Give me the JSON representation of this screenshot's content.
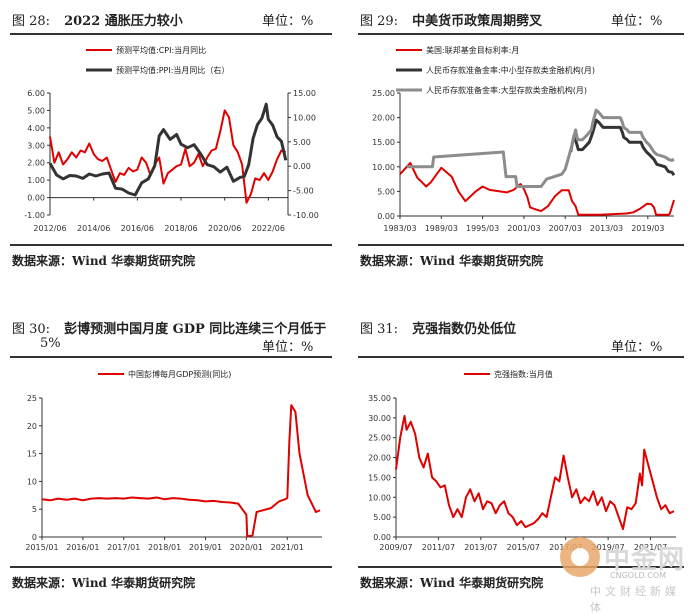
{
  "panels": [
    {
      "num": "图 28:",
      "title": "2022 通胀压力较小",
      "unit": "单位：%",
      "source": "数据来源：Wind 华泰期货研究院"
    },
    {
      "num": "图 29:",
      "title": "中美货币政策周期劈叉",
      "unit": "单位：%",
      "source": "数据来源：Wind 华泰期货研究院"
    },
    {
      "num": "图 30:",
      "title": "彭博预测中国月度 GDP 同比连续三个月低于",
      "title2": "5%",
      "unit": "单位：%",
      "source": "数据来源：Wind 华泰期货研究院"
    },
    {
      "num": "图 31:",
      "title": "克强指数仍处低位",
      "unit": "单位：%",
      "source": "数据来源：Wind 华泰期货研究院"
    }
  ],
  "watermark": {
    "text": "中金网",
    "sub": "CNGOLD.COM",
    "cn": "中文财经新媒体"
  },
  "colors": {
    "red": "#e00000",
    "dark": "#333333",
    "gray": "#8c8c8c",
    "axis": "#333333"
  },
  "chart_data": [
    {
      "type": "line",
      "legend": [
        "预测平均值:CPI:当月同比",
        "预测平均值:PPI:当月同比（右）"
      ],
      "x_ticks": [
        "2012/06",
        "2014/06",
        "2016/06",
        "2018/06",
        "2020/06",
        "2022/06"
      ],
      "x_range": [
        2012.0,
        2022.9
      ],
      "y_left": {
        "range": [
          -1,
          6
        ],
        "ticks": [
          "-1.00",
          "0.00",
          "1.00",
          "2.00",
          "3.00",
          "4.00",
          "5.00",
          "6.00"
        ],
        "vals": [
          -1,
          0,
          1,
          2,
          3,
          4,
          5,
          6
        ]
      },
      "y_right": {
        "range": [
          -10,
          15
        ],
        "ticks": [
          "-10.00",
          "-5.00",
          "0.00",
          "5.00",
          "10.00",
          "15.00"
        ],
        "vals": [
          -10,
          -5,
          0,
          5,
          10,
          15
        ]
      },
      "series": [
        {
          "name": "预测平均值:CPI:当月同比",
          "axis": "left",
          "color": "red",
          "x": [
            2012.0,
            2012.2,
            2012.4,
            2012.6,
            2012.8,
            2013.0,
            2013.2,
            2013.4,
            2013.6,
            2013.8,
            2014.0,
            2014.2,
            2014.4,
            2014.6,
            2014.8,
            2015.0,
            2015.2,
            2015.4,
            2015.6,
            2015.8,
            2016.0,
            2016.2,
            2016.4,
            2016.6,
            2016.8,
            2017.0,
            2017.2,
            2017.4,
            2017.6,
            2017.8,
            2018.0,
            2018.2,
            2018.4,
            2018.6,
            2018.8,
            2019.0,
            2019.2,
            2019.4,
            2019.6,
            2019.8,
            2020.0,
            2020.2,
            2020.4,
            2020.6,
            2020.8,
            2021.0,
            2021.2,
            2021.4,
            2021.6,
            2021.8,
            2022.0,
            2022.2,
            2022.4,
            2022.6,
            2022.8
          ],
          "y": [
            3.5,
            2.0,
            2.6,
            1.9,
            2.2,
            2.6,
            2.3,
            2.7,
            2.6,
            3.1,
            2.5,
            2.2,
            2.1,
            2.3,
            1.6,
            0.9,
            1.4,
            1.3,
            1.7,
            1.5,
            1.6,
            2.3,
            2.0,
            1.3,
            1.9,
            2.3,
            0.8,
            1.4,
            1.6,
            1.8,
            1.9,
            2.8,
            1.8,
            2.0,
            2.5,
            1.8,
            2.3,
            2.7,
            2.8,
            3.8,
            5.0,
            4.6,
            3.0,
            2.6,
            1.9,
            -0.3,
            0.2,
            1.1,
            1.0,
            1.4,
            1.0,
            1.5,
            2.2,
            2.7,
            2.6
          ]
        },
        {
          "name": "预测平均值:PPI:当月同比（右）",
          "axis": "right",
          "color": "dark",
          "x": [
            2012.0,
            2012.3,
            2012.6,
            2012.9,
            2013.2,
            2013.5,
            2013.8,
            2014.1,
            2014.4,
            2014.7,
            2015.0,
            2015.3,
            2015.6,
            2015.9,
            2016.2,
            2016.5,
            2016.8,
            2017.0,
            2017.2,
            2017.5,
            2017.8,
            2018.0,
            2018.3,
            2018.6,
            2018.9,
            2019.2,
            2019.5,
            2019.8,
            2020.1,
            2020.4,
            2020.7,
            2020.9,
            2021.1,
            2021.3,
            2021.5,
            2021.7,
            2021.8,
            2021.9,
            2022.0,
            2022.2,
            2022.4,
            2022.6,
            2022.8
          ],
          "y": [
            0.6,
            -1.8,
            -2.6,
            -1.9,
            -2.0,
            -2.5,
            -1.6,
            -2.0,
            -1.6,
            -1.4,
            -4.5,
            -4.7,
            -5.5,
            -5.9,
            -3.4,
            -2.6,
            0.1,
            6.2,
            7.5,
            5.5,
            6.5,
            4.5,
            3.8,
            4.4,
            2.5,
            0.3,
            -0.1,
            -1.2,
            -0.2,
            -3.1,
            -2.3,
            -2.1,
            0.3,
            5.7,
            8.5,
            9.8,
            11.2,
            12.7,
            9.6,
            8.4,
            6.0,
            5.1,
            1.2
          ]
        }
      ]
    },
    {
      "type": "line",
      "legend": [
        "美国:联邦基金目标利率:月",
        "人民币存款准备金率:中小型存款类金融机构(月)",
        "人民币存款准备金率:大型存款类金融机构(月)"
      ],
      "x_ticks": [
        "1983/03",
        "1989/03",
        "1995/03",
        "2001/03",
        "2007/03",
        "2013/03",
        "2019/03"
      ],
      "x_range": [
        1983.0,
        2022.8
      ],
      "y_left": {
        "range": [
          0,
          25
        ],
        "ticks": [
          "0.00",
          "5.00",
          "10.00",
          "15.00",
          "20.00",
          "25.00"
        ],
        "vals": [
          0,
          5,
          10,
          15,
          20,
          25
        ]
      },
      "series": [
        {
          "name": "美国:联邦基金目标利率:月",
          "color": "red",
          "x": [
            1983.0,
            1984.5,
            1985.5,
            1986.8,
            1987.5,
            1989.0,
            1990.5,
            1991.5,
            1992.5,
            1994.0,
            1995.0,
            1996.0,
            1998.5,
            1999.5,
            2000.5,
            2001.0,
            2001.5,
            2001.9,
            2002.9,
            2003.5,
            2004.5,
            2005.5,
            2006.5,
            2007.5,
            2008.0,
            2008.5,
            2008.9,
            2012.0,
            2015.9,
            2016.9,
            2017.9,
            2018.9,
            2019.5,
            2019.9,
            2020.2,
            2022.0,
            2022.2,
            2022.8
          ],
          "y": [
            8.5,
            10.8,
            7.8,
            6.0,
            6.9,
            9.8,
            8.0,
            5.0,
            3.0,
            5.0,
            6.0,
            5.3,
            4.8,
            5.3,
            6.5,
            5.5,
            3.8,
            1.75,
            1.25,
            1.0,
            2.0,
            4.0,
            5.25,
            5.25,
            3.0,
            2.0,
            0.25,
            0.25,
            0.5,
            0.75,
            1.5,
            2.5,
            2.4,
            1.75,
            0.25,
            0.25,
            0.5,
            3.25
          ]
        },
        {
          "name": "人民币存款准备金率:中小型存款类金融机构(月)",
          "color": "dark",
          "x": [
            2007.8,
            2008.0,
            2008.3,
            2008.9,
            2009.5,
            2010.5,
            2011.0,
            2011.5,
            2011.9,
            2012.2,
            2012.5,
            2015.0,
            2015.3,
            2015.5,
            2016.0,
            2016.3,
            2018.0,
            2018.3,
            2018.8,
            2019.2,
            2019.9,
            2020.3,
            2021.5,
            2022.0,
            2022.5,
            2022.8
          ],
          "y": [
            13.0,
            14.5,
            16.5,
            13.5,
            13.5,
            15.0,
            17.0,
            19.5,
            19.0,
            18.5,
            18.0,
            18.0,
            17.0,
            16.0,
            15.5,
            15.0,
            15.0,
            14.0,
            13.0,
            12.5,
            11.5,
            10.5,
            10.0,
            9.0,
            8.9,
            8.3
          ]
        },
        {
          "name": "人民币存款准备金率:大型存款类金融机构(月)",
          "color": "gray",
          "x": [
            1984.0,
            1985.0,
            1985.2,
            1987.7,
            1987.9,
            1998.0,
            1998.4,
            1999.8,
            2000.0,
            2003.5,
            2004.3,
            2006.5,
            2007.0,
            2007.5,
            2008.0,
            2008.5,
            2008.8,
            2009.5,
            2010.2,
            2010.8,
            2011.0,
            2011.5,
            2011.9,
            2012.2,
            2012.5,
            2015.0,
            2015.3,
            2015.5,
            2016.0,
            2016.3,
            2018.0,
            2018.3,
            2018.8,
            2019.2,
            2019.9,
            2020.3,
            2021.5,
            2022.0,
            2022.5,
            2022.8
          ],
          "y": [
            10.0,
            10.0,
            10.0,
            10.0,
            12.0,
            13.0,
            8.0,
            8.0,
            6.0,
            6.0,
            7.5,
            8.5,
            9.5,
            12.0,
            14.5,
            17.5,
            15.5,
            15.5,
            16.5,
            17.5,
            19.0,
            21.5,
            21.0,
            20.5,
            20.0,
            20.0,
            19.0,
            18.0,
            17.5,
            17.0,
            17.0,
            16.0,
            15.0,
            14.5,
            13.0,
            12.5,
            12.0,
            11.5,
            11.3,
            11.5
          ]
        }
      ]
    },
    {
      "type": "line",
      "legend": [
        "中国彭博每月GDP预测(同比)"
      ],
      "x_ticks": [
        "2015/01",
        "2016/01",
        "2017/01",
        "2018/01",
        "2019/01",
        "2020/01",
        "2021/01"
      ],
      "x_range": [
        2015.0,
        2021.85
      ],
      "y_left": {
        "range": [
          0,
          25
        ],
        "ticks": [
          "0",
          "5",
          "10",
          "15",
          "20",
          "25"
        ],
        "vals": [
          0,
          5,
          10,
          15,
          20,
          25
        ]
      },
      "series": [
        {
          "name": "中国彭博每月GDP预测(同比)",
          "color": "red",
          "x": [
            2015.0,
            2015.2,
            2015.4,
            2015.6,
            2015.8,
            2016.0,
            2016.2,
            2016.4,
            2016.6,
            2016.8,
            2017.0,
            2017.2,
            2017.4,
            2017.6,
            2017.8,
            2018.0,
            2018.2,
            2018.4,
            2018.6,
            2018.8,
            2019.0,
            2019.2,
            2019.4,
            2019.6,
            2019.8,
            2020.0,
            2020.02,
            2020.15,
            2020.25,
            2020.4,
            2020.6,
            2020.8,
            2020.95,
            2021.0,
            2021.05,
            2021.1,
            2021.2,
            2021.3,
            2021.5,
            2021.6,
            2021.7,
            2021.8
          ],
          "y": [
            6.8,
            6.6,
            6.9,
            6.7,
            6.9,
            6.6,
            6.9,
            7.0,
            6.9,
            7.0,
            6.9,
            7.1,
            7.0,
            6.9,
            7.1,
            6.8,
            7.0,
            6.9,
            6.7,
            6.6,
            6.4,
            6.5,
            6.3,
            6.2,
            6.0,
            4.0,
            0.1,
            0.3,
            4.5,
            4.8,
            5.2,
            6.4,
            6.8,
            7.0,
            17.0,
            23.7,
            22.5,
            15.0,
            7.5,
            6.0,
            4.5,
            4.8
          ]
        }
      ]
    },
    {
      "type": "line",
      "legend": [
        "克强指数:当月值"
      ],
      "x_ticks": [
        "2009/07",
        "2011/07",
        "2013/07",
        "2015/07",
        "2017/07",
        "2019/07",
        "2021/07"
      ],
      "x_range": [
        2009.5,
        2022.7
      ],
      "y_left": {
        "range": [
          0,
          35
        ],
        "ticks": [
          "0.00",
          "5.00",
          "10.00",
          "15.00",
          "20.00",
          "25.00",
          "30.00",
          "35.00"
        ],
        "vals": [
          0,
          5,
          10,
          15,
          20,
          25,
          30,
          35
        ]
      },
      "series": [
        {
          "name": "克强指数:当月值",
          "color": "red",
          "x": [
            2009.5,
            2009.7,
            2009.9,
            2010.0,
            2010.2,
            2010.4,
            2010.6,
            2010.8,
            2011.0,
            2011.2,
            2011.4,
            2011.6,
            2011.8,
            2012.0,
            2012.2,
            2012.4,
            2012.6,
            2012.8,
            2013.0,
            2013.2,
            2013.4,
            2013.6,
            2013.8,
            2014.0,
            2014.2,
            2014.4,
            2014.6,
            2014.8,
            2015.0,
            2015.2,
            2015.4,
            2015.6,
            2015.8,
            2016.0,
            2016.2,
            2016.4,
            2016.6,
            2016.8,
            2017.0,
            2017.2,
            2017.4,
            2017.6,
            2017.8,
            2018.0,
            2018.2,
            2018.4,
            2018.6,
            2018.8,
            2019.0,
            2019.2,
            2019.4,
            2019.6,
            2019.8,
            2020.0,
            2020.2,
            2020.4,
            2020.6,
            2020.8,
            2021.0,
            2021.1,
            2021.2,
            2021.4,
            2021.6,
            2021.8,
            2022.0,
            2022.2,
            2022.4,
            2022.6
          ],
          "y": [
            17.0,
            25.0,
            30.5,
            27.0,
            29.0,
            26.0,
            20.0,
            17.5,
            21.0,
            15.0,
            14.0,
            12.5,
            13.0,
            8.0,
            5.0,
            7.0,
            5.0,
            10.0,
            12.0,
            9.0,
            11.0,
            7.0,
            9.0,
            8.5,
            6.0,
            8.0,
            9.0,
            6.0,
            5.0,
            3.0,
            4.0,
            2.5,
            3.0,
            3.5,
            4.5,
            6.0,
            5.0,
            10.0,
            15.0,
            14.0,
            20.5,
            15.0,
            10.0,
            12.0,
            8.5,
            10.0,
            9.0,
            11.5,
            8.0,
            10.0,
            6.5,
            9.0,
            8.0,
            5.0,
            2.0,
            7.5,
            7.0,
            8.5,
            16.0,
            13.0,
            22.0,
            18.0,
            14.0,
            10.0,
            7.0,
            8.0,
            6.0,
            6.5
          ]
        }
      ]
    }
  ]
}
